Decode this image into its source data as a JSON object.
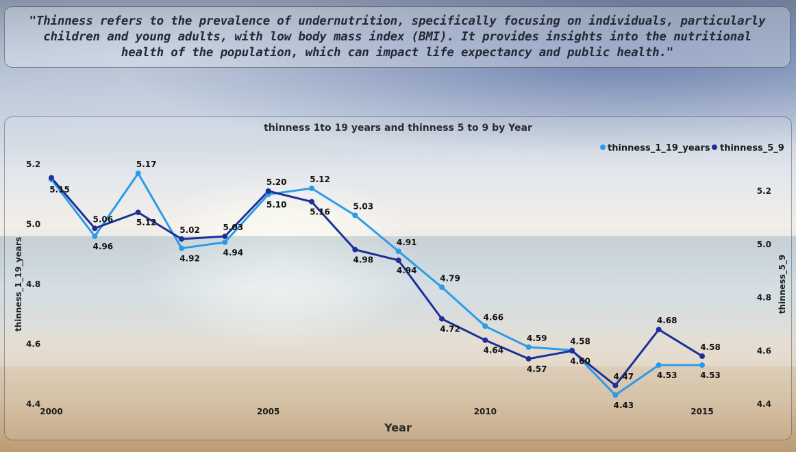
{
  "quote": {
    "text": "\"Thinness  refers to the prevalence of undernutrition, specifically focusing on individuals, particularly children and young adults, with low body mass index (BMI). It provides insights into the nutritional health of the population, which can impact life expectancy and public health.\""
  },
  "chart_data": {
    "type": "line",
    "title": "thinness 1to 19 years and thinness 5 to 9 by Year",
    "xlabel": "Year",
    "ylabel": "thinness_1_19_years",
    "y2label": "thinness_5_9",
    "x": [
      2000,
      2001,
      2002,
      2003,
      2004,
      2005,
      2006,
      2007,
      2008,
      2009,
      2010,
      2011,
      2012,
      2013,
      2014,
      2015
    ],
    "x_ticks": [
      "2000",
      "2005",
      "2010",
      "2015"
    ],
    "ylim": [
      4.4,
      5.2
    ],
    "y_ticks": [
      "4.4",
      "4.6",
      "4.8",
      "5.0",
      "5.2"
    ],
    "y2lim": [
      4.4,
      5.3
    ],
    "y2_ticks": [
      "4.4",
      "4.6",
      "4.8",
      "5.0",
      "5.2"
    ],
    "legend_position": "top-right",
    "series": [
      {
        "name": "thinness_1_19_years",
        "axis": "left",
        "color": "#2b9be8",
        "values": [
          5.15,
          4.96,
          5.17,
          4.92,
          4.94,
          5.1,
          5.12,
          5.03,
          4.91,
          4.79,
          4.66,
          4.59,
          4.58,
          4.43,
          4.53,
          4.53
        ],
        "labels": [
          "5.15",
          "4.96",
          "5.17",
          "4.92",
          "4.94",
          "5.10",
          "5.12",
          "5.03",
          "4.91",
          "4.79",
          "4.66",
          "4.59",
          "4.58",
          "4.43",
          "4.53",
          "4.53"
        ]
      },
      {
        "name": "thinness_5_9",
        "axis": "right",
        "color": "#1c2f99",
        "values": [
          5.25,
          5.06,
          5.12,
          5.02,
          5.03,
          5.2,
          5.16,
          4.98,
          4.94,
          4.72,
          4.64,
          4.57,
          4.6,
          4.47,
          4.68,
          4.58
        ],
        "labels": [
          "",
          "5.06",
          "5.12",
          "5.02",
          "5.03",
          "5.20",
          "5.16",
          "4.98",
          "4.94",
          "4.72",
          "4.64",
          "4.57",
          "4.60",
          "4.47",
          "4.68",
          "4.58"
        ]
      }
    ]
  }
}
